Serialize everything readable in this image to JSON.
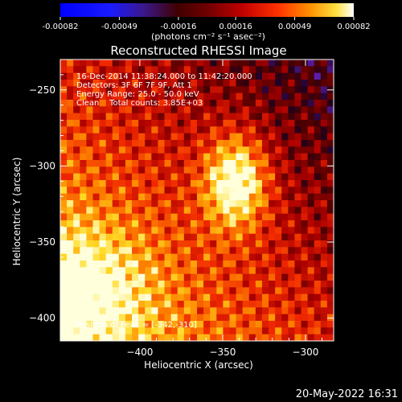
{
  "chart_data": {
    "type": "heatmap",
    "title": "Reconstructed RHESSI Image",
    "xlabel": "Heliocentric X (arcsec)",
    "ylabel": "Heliocentric Y (arcsec)",
    "xlim": [
      -448,
      -283
    ],
    "ylim": [
      -415,
      -230
    ],
    "x_ticks": [
      -400,
      -350,
      -300
    ],
    "y_ticks": [
      -400,
      -350,
      -300,
      -250
    ],
    "colorbar": {
      "ticks": [
        "-0.00082",
        "-0.00049",
        "-0.00016",
        "0.00016",
        "0.00049",
        "0.00082"
      ],
      "min": -0.00082,
      "max": 0.00082,
      "unit_label": "(photons cm⁻² s⁻¹ asec⁻²)"
    },
    "annotations": [
      "16-Dec-2014 11:38:24.000 to 11:42:20.000",
      "Detectors: 3F 6F 7F 9F, Att 1",
      "Energy Range: 25.0 - 50.0 keV",
      "Clean    Total counts: 3.85E+03"
    ],
    "peak_label": "Position of Peak = [-342,-310]",
    "peak": [
      -342,
      -310
    ],
    "grid": false
  },
  "footer": {
    "timestamp": "20-May-2022 16:31"
  }
}
